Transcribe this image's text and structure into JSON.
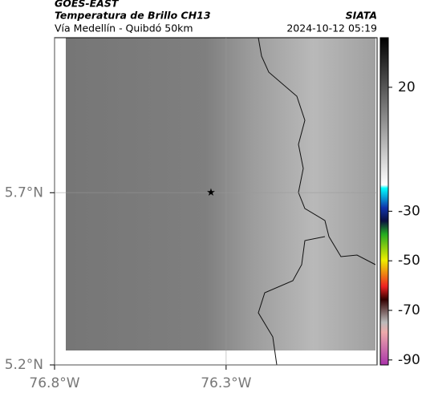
{
  "chart_data": {
    "type": "map",
    "title": "GOES-EAST",
    "subtitle": "Temperatura de Brillo CH13",
    "region": "Vía Medellín - Quibdó 50km",
    "source": "SIATA",
    "timestamp": "2024-10-12 05:19",
    "xlim": [
      -76.8,
      -75.86
    ],
    "ylim": [
      5.2,
      6.15
    ],
    "xticks": [
      {
        "value": -76.8,
        "label": "76.8°W"
      },
      {
        "value": -76.3,
        "label": "76.3°W"
      }
    ],
    "yticks": [
      {
        "value": 5.2,
        "label": "5.2°N"
      },
      {
        "value": 5.7,
        "label": "5.7°N"
      }
    ],
    "grid": true,
    "marker": {
      "x": -76.344,
      "y": 5.7
    },
    "colorbar": {
      "lim": [
        -92,
        40
      ],
      "ticks": [
        20,
        -30,
        -50,
        -70,
        -90
      ]
    }
  }
}
